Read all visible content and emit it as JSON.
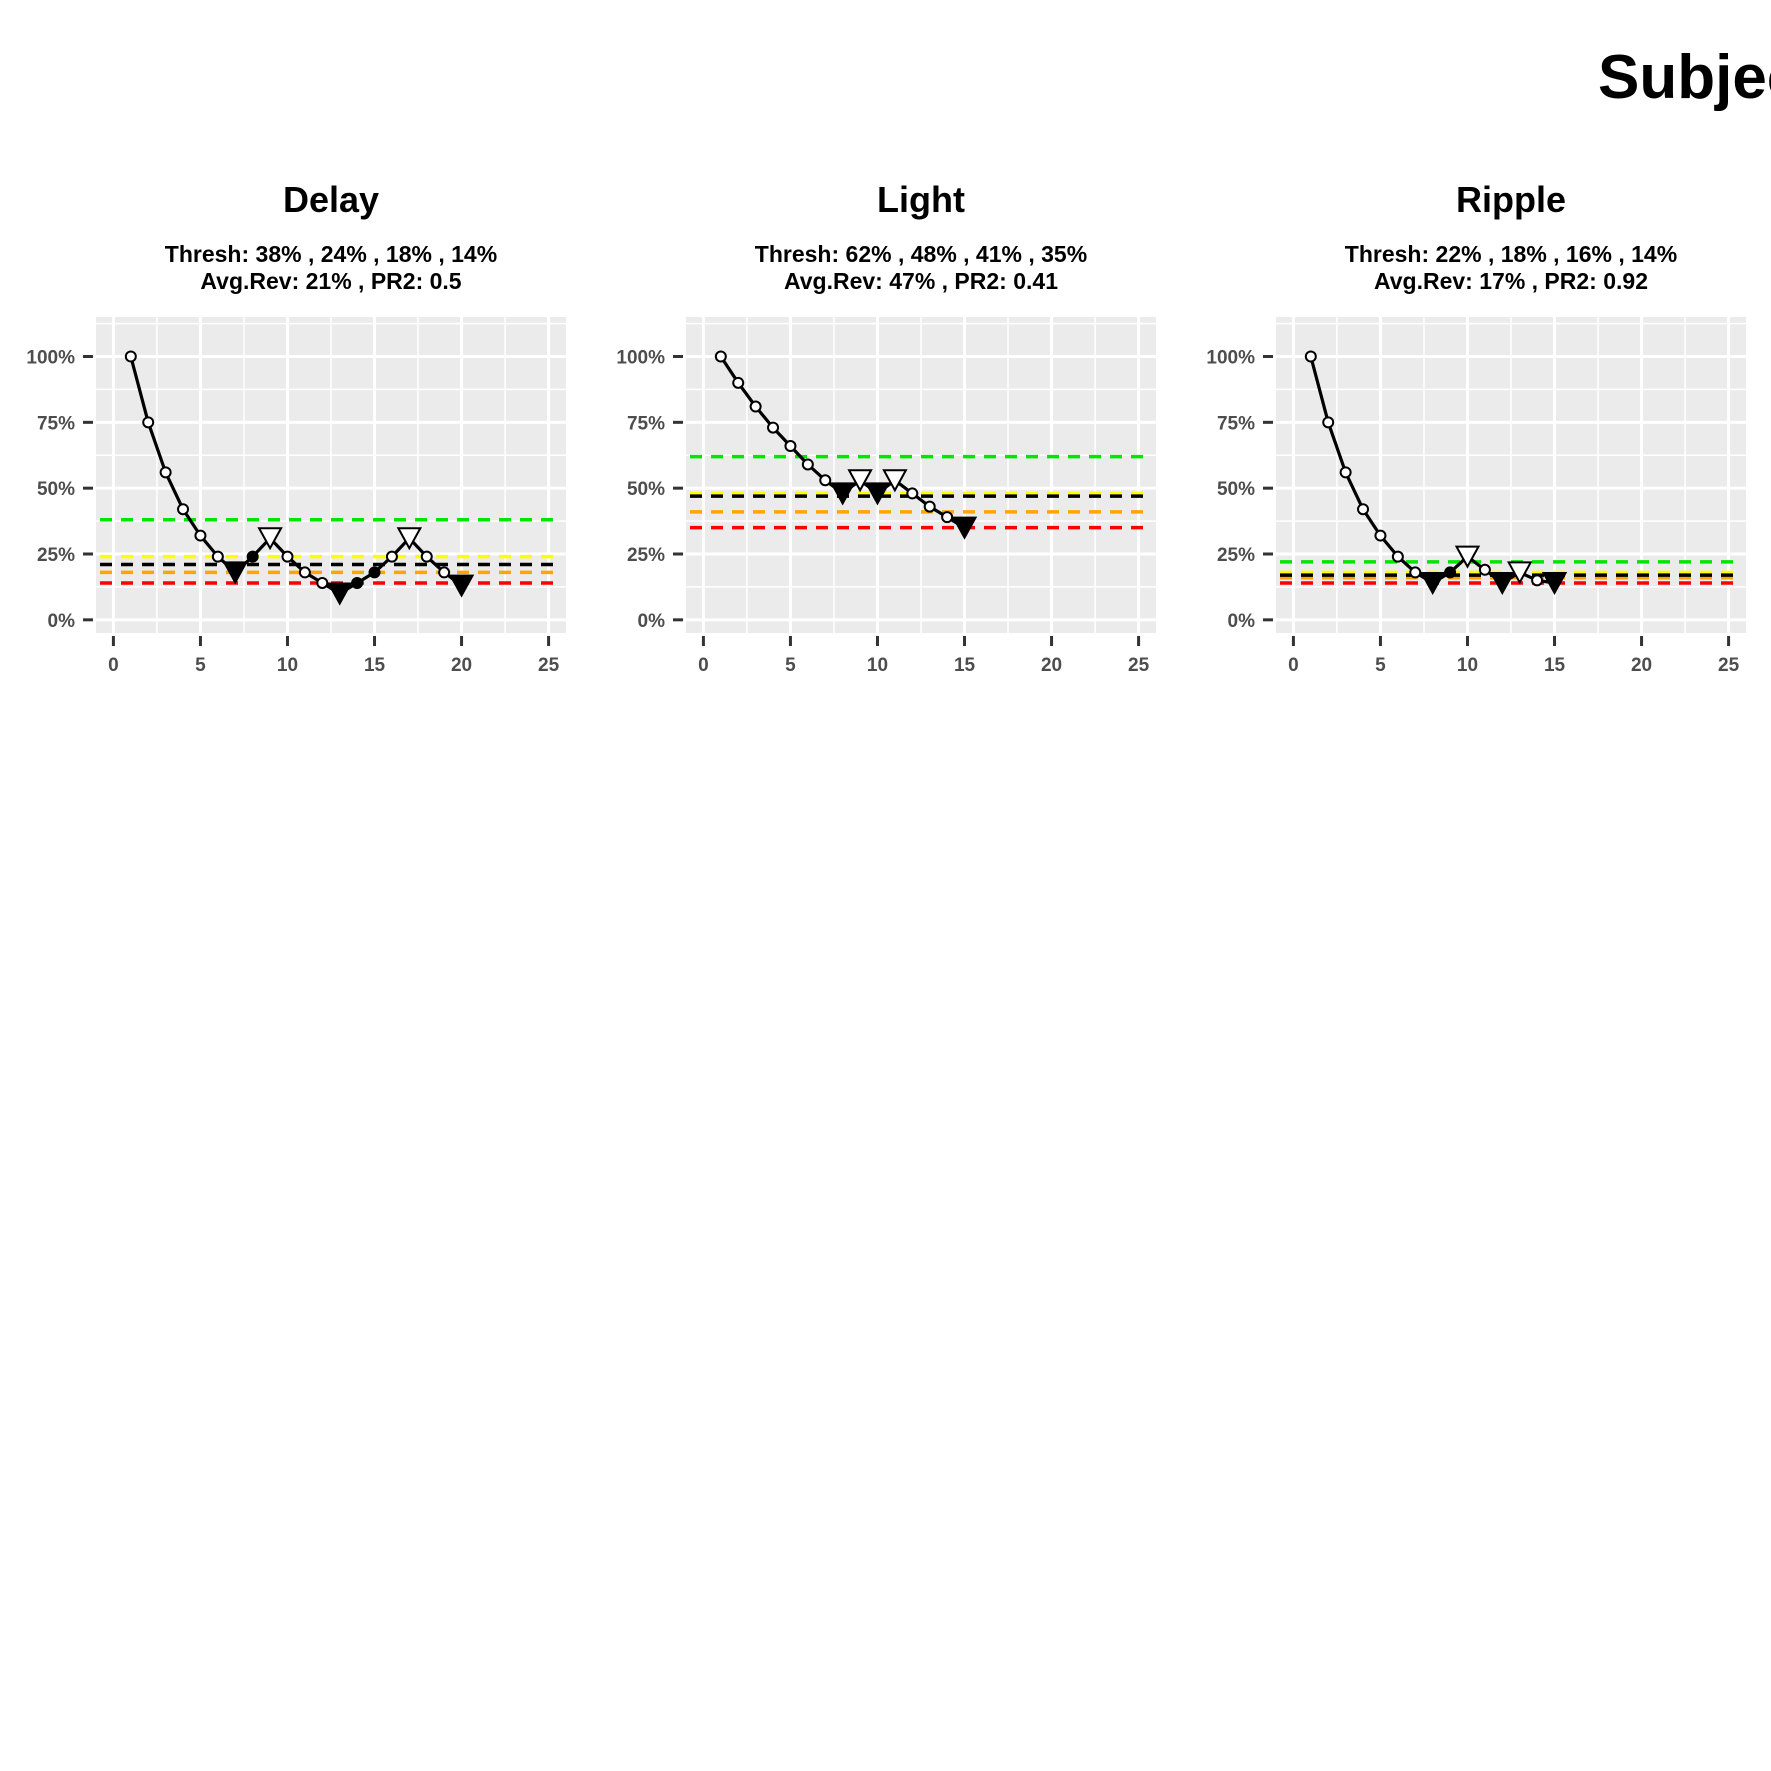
{
  "figure": {
    "title": "Subjec"
  },
  "colors": {
    "panel_bg": "#EBEBEB",
    "grid": "#FFFFFF",
    "line": "#000000",
    "thresholds": [
      "#00E600",
      "#FFFF00",
      "#FFA500",
      "#FF0000"
    ],
    "average": "#000000"
  },
  "chart_data": [
    {
      "type": "line",
      "title": "Delay",
      "subtitle_lines": [
        "Thresh: 38% , 24% , 18% , 14%",
        "Avg.Rev: 21% , PR2: 0.5"
      ],
      "xlim": [
        -1,
        26
      ],
      "ylim": [
        -5,
        115
      ],
      "x_ticks": [
        "0",
        "5",
        "10",
        "15",
        "20",
        "25"
      ],
      "y_ticks": [
        "0%",
        "25%",
        "50%",
        "75%",
        "100%"
      ],
      "grid": true,
      "thresholds": [
        38,
        24,
        18,
        14
      ],
      "average_reversal": 21,
      "series": [
        {
          "x": [
            1,
            2,
            3,
            4,
            5,
            6,
            7,
            8,
            9,
            10,
            11,
            12,
            13,
            14,
            15,
            16,
            17,
            18,
            19,
            20
          ],
          "y": [
            100,
            75,
            56,
            42,
            32,
            24,
            18,
            24,
            31,
            24,
            18,
            14,
            10,
            14,
            18,
            24,
            31,
            24,
            18,
            13
          ],
          "marker": [
            "c",
            "c",
            "c",
            "c",
            "c",
            "c",
            "rd",
            "d",
            "ru",
            "c",
            "c",
            "c",
            "rd",
            "d",
            "d",
            "c",
            "ru",
            "c",
            "c",
            "rd"
          ]
        }
      ]
    },
    {
      "type": "line",
      "title": "Light",
      "subtitle_lines": [
        "Thresh: 62% , 48% , 41% , 35%",
        "Avg.Rev: 47% , PR2: 0.41"
      ],
      "xlim": [
        -1,
        26
      ],
      "ylim": [
        -5,
        115
      ],
      "x_ticks": [
        "0",
        "5",
        "10",
        "15",
        "20",
        "25"
      ],
      "y_ticks": [
        "0%",
        "25%",
        "50%",
        "75%",
        "100%"
      ],
      "grid": true,
      "thresholds": [
        62,
        48,
        41,
        35
      ],
      "average_reversal": 47,
      "series": [
        {
          "x": [
            1,
            2,
            3,
            4,
            5,
            6,
            7,
            8,
            9,
            10,
            11,
            12,
            13,
            14,
            15
          ],
          "y": [
            100,
            90,
            81,
            73,
            66,
            59,
            53,
            48,
            53,
            48,
            53,
            48,
            43,
            39,
            35
          ],
          "marker": [
            "c",
            "c",
            "c",
            "c",
            "c",
            "c",
            "c",
            "rd",
            "ru",
            "rd",
            "ru",
            "c",
            "c",
            "c",
            "rd"
          ]
        }
      ]
    },
    {
      "type": "line",
      "title": "Ripple",
      "subtitle_lines": [
        "Thresh: 22% , 18% , 16% , 14%",
        "Avg.Rev: 17% , PR2: 0.92"
      ],
      "xlim": [
        -1,
        26
      ],
      "ylim": [
        -5,
        115
      ],
      "x_ticks": [
        "0",
        "5",
        "10",
        "15",
        "20",
        "25"
      ],
      "y_ticks": [
        "0%",
        "25%",
        "50%",
        "75%",
        "100%"
      ],
      "grid": true,
      "thresholds": [
        22,
        18,
        16,
        14
      ],
      "average_reversal": 17,
      "series": [
        {
          "x": [
            1,
            2,
            3,
            4,
            5,
            6,
            7,
            8,
            9,
            10,
            11,
            12,
            13,
            14,
            15
          ],
          "y": [
            100,
            75,
            56,
            42,
            32,
            24,
            18,
            14,
            18,
            24,
            19,
            14,
            18,
            15,
            14
          ],
          "marker": [
            "c",
            "c",
            "c",
            "c",
            "c",
            "c",
            "c",
            "rd",
            "d",
            "ru",
            "c",
            "rd",
            "ru",
            "c",
            "rd"
          ]
        }
      ]
    }
  ]
}
